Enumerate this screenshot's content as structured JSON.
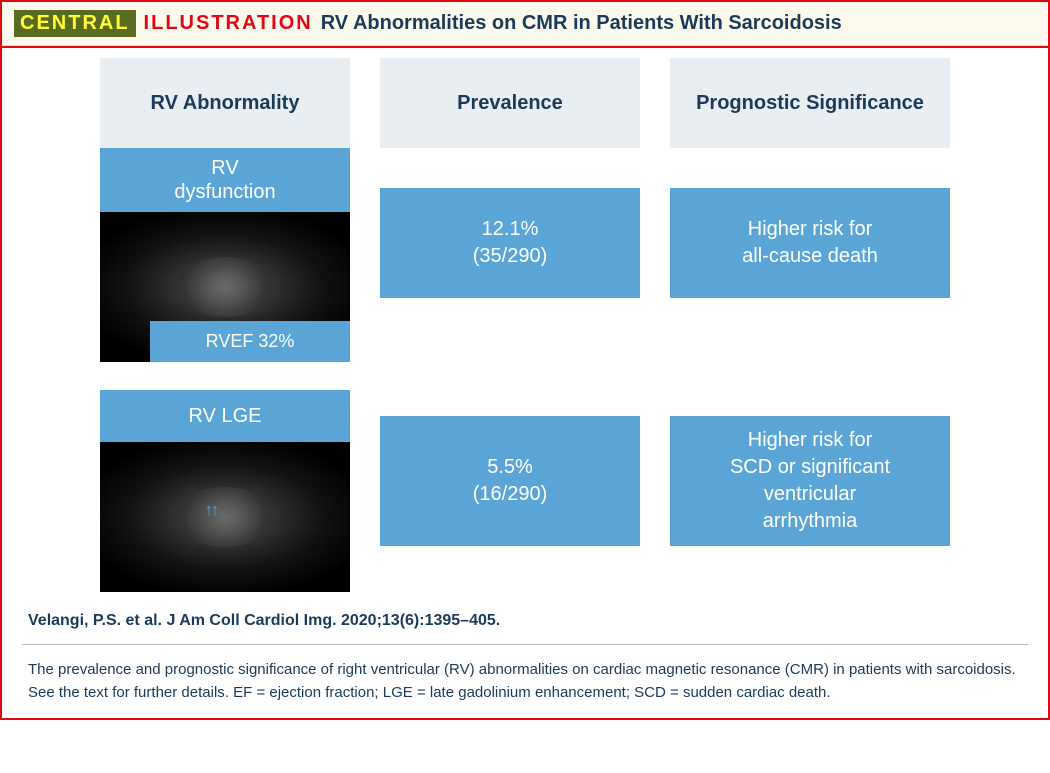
{
  "header": {
    "tag_central": "CENTRAL",
    "tag_illustration": "ILLUSTRATION",
    "title": "RV Abnormalities on CMR in Patients With Sarcoidosis"
  },
  "columns": {
    "col1": "RV Abnormality",
    "col2": "Prevalence",
    "col3": "Prognostic Significance"
  },
  "row1": {
    "label": "RV dysfunction",
    "rvef_tag": "RVEF 32%",
    "prevalence_pct": "12.1%",
    "prevalence_n": "(35/290)",
    "prognosis_l1": "Higher risk for",
    "prognosis_l2": "all-cause death"
  },
  "row2": {
    "label": "RV LGE",
    "prevalence_pct": "5.5%",
    "prevalence_n": "(16/290)",
    "prognosis_l1": "Higher risk for",
    "prognosis_l2": "SCD or significant",
    "prognosis_l3": "ventricular",
    "prognosis_l4": "arrhythmia"
  },
  "citation": "Velangi, P.S. et al. J Am Coll Cardiol Img. 2020;13(6):1395–405.",
  "caption": "The prevalence and prognostic significance of right ventricular (RV) abnormalities on cardiac magnetic resonance (CMR) in patients with sarcoidosis. See the text for further details. EF = ejection fraction; LGE = late gadolinium enhancement; SCD = sudden cardiac death.",
  "colors": {
    "border": "#e30613",
    "header_bg": "#fcf9ed",
    "tag_bg": "#5a6b1f",
    "tag_fg": "#ffff33",
    "illus_fg": "#e30613",
    "title_fg": "#1a3a5a",
    "colhead_bg": "#e8eef2",
    "blue": "#5aa5d6",
    "white": "#ffffff"
  },
  "type": "infographic"
}
